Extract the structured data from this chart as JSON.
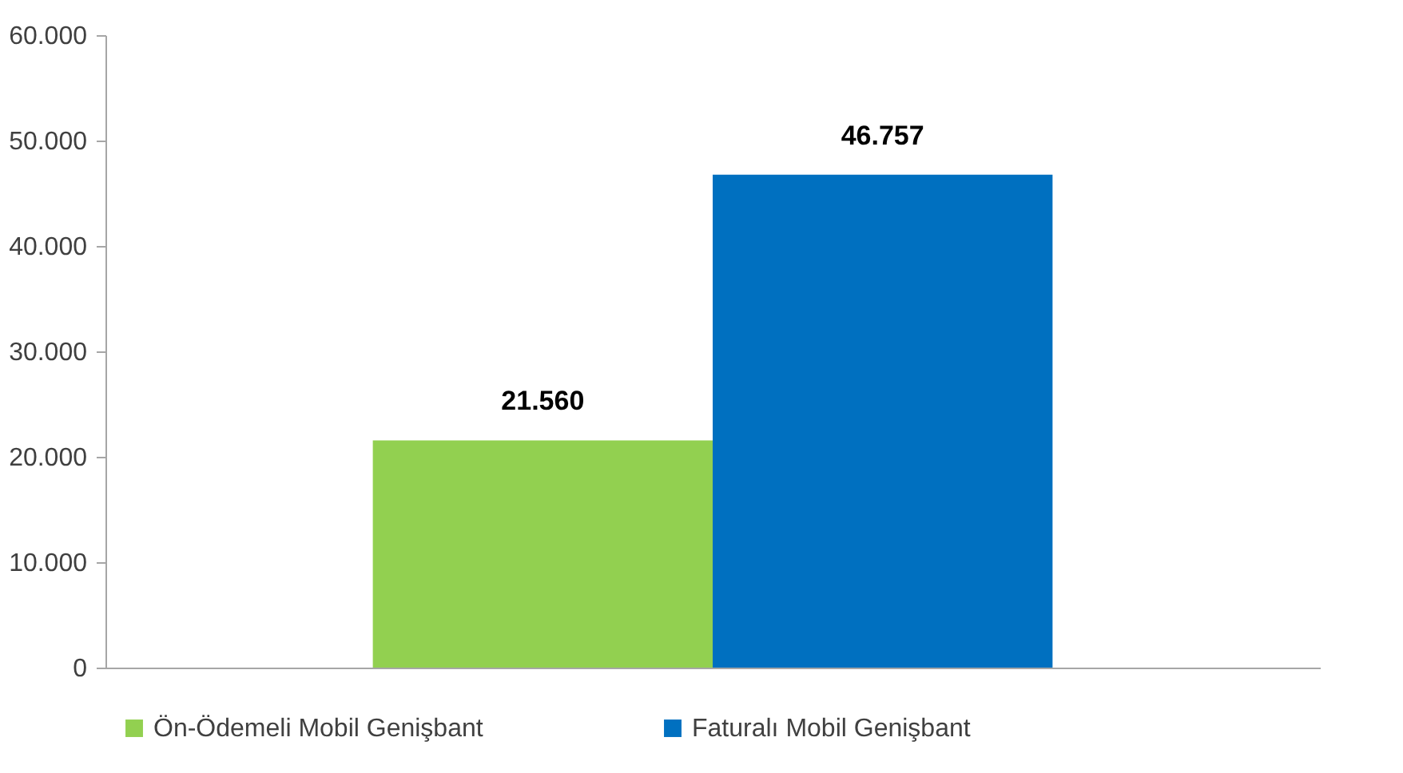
{
  "chart_data": {
    "type": "bar",
    "categories": [
      null
    ],
    "series": [
      {
        "name": "Ön-Ödemeli Mobil Genişbant",
        "color": "#92d050",
        "values": [
          21560
        ],
        "value_labels": [
          "21.560"
        ]
      },
      {
        "name": "Faturalı Mobil Genişbant",
        "color": "#0070c0",
        "values": [
          46757
        ],
        "value_labels": [
          "46.757"
        ]
      }
    ],
    "ylim": [
      0,
      60000
    ],
    "yticks": [
      {
        "value": 0,
        "label": "0"
      },
      {
        "value": 10000,
        "label": "10.000"
      },
      {
        "value": 20000,
        "label": "20.000"
      },
      {
        "value": 30000,
        "label": "30.000"
      },
      {
        "value": 40000,
        "label": "40.000"
      },
      {
        "value": 50000,
        "label": "50.000"
      },
      {
        "value": 60000,
        "label": "60.000"
      }
    ],
    "grid": false,
    "legend": "bottom"
  }
}
